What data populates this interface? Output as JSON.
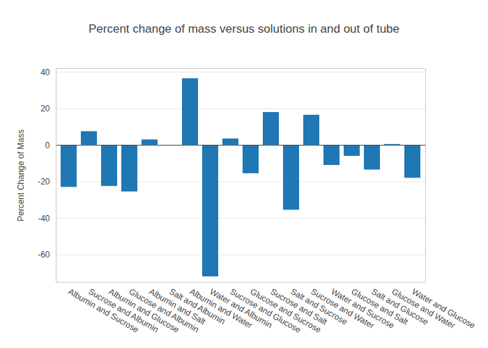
{
  "chart_data": {
    "type": "bar",
    "title": "Percent change of mass versus solutions in and out of tube",
    "y_label": "Percent Change of Mass",
    "categories": [
      "Albumin and Sucrose",
      "Sucrose and Albumin",
      "Albumin and Glucose",
      "Glucose and Albumin",
      "Albumin and Salt",
      "Salt and Albumin",
      "Albumin and Water",
      "Water and Albumin",
      "Sucrose and Glucose",
      "Glucose and Sucrose",
      "Sucrose and Salt",
      "Salt and Sucrose",
      "Sucrose and Water",
      "Water and Sucrose",
      "Glucose and Salt",
      "Salt and Glucose",
      "Glucose and Water",
      "Water and Glucose"
    ],
    "values": [
      -23,
      7.5,
      -22.5,
      -25.5,
      3,
      0,
      36.5,
      -72,
      3.5,
      -15.5,
      18,
      -35.5,
      16.5,
      -11,
      -6,
      -13.5,
      0.5,
      -18
    ],
    "color": "#1f77b4",
    "ylim": [
      -75,
      42
    ],
    "yticks": [
      -60,
      -40,
      -20,
      0,
      20,
      40
    ],
    "grid": true
  }
}
